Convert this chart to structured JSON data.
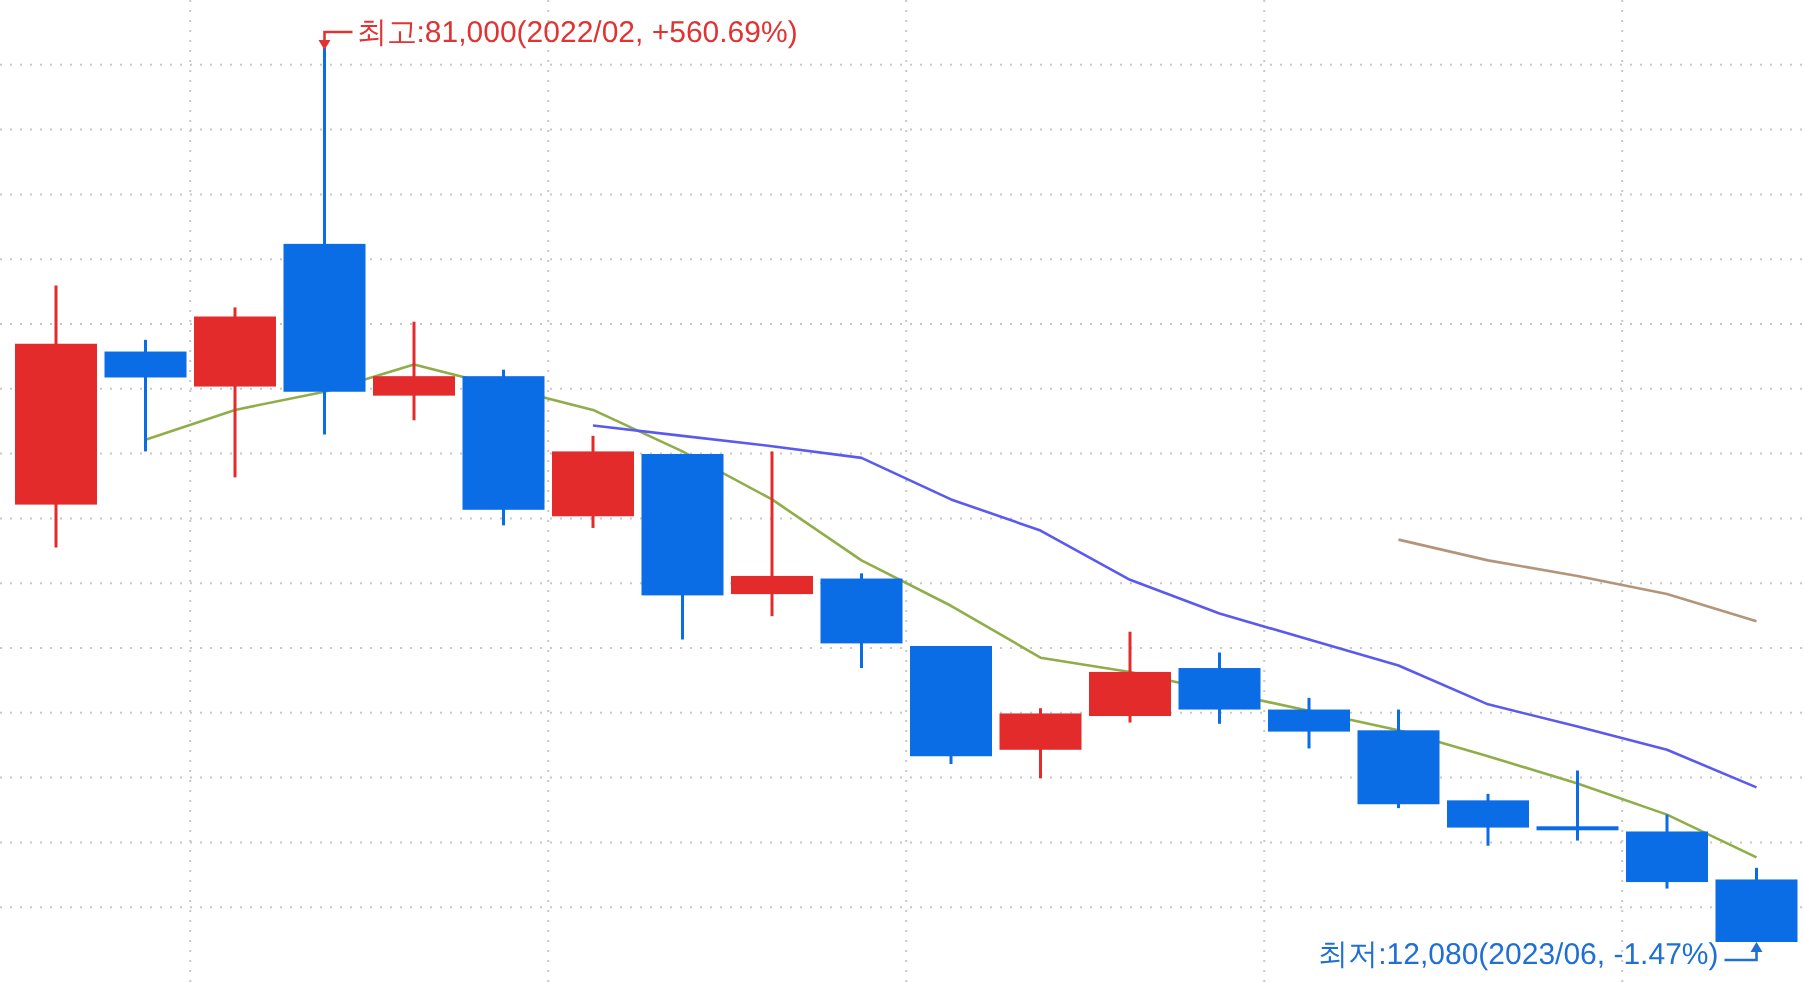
{
  "chart_data": {
    "type": "candlestick",
    "grid": true,
    "categories": [
      null,
      null,
      null,
      null,
      null,
      null,
      null,
      null,
      null,
      null,
      null,
      null,
      null,
      null,
      null,
      null,
      null,
      null,
      null,
      null
    ],
    "ohlc": [
      [
        45800,
        62700,
        42500,
        58200
      ],
      [
        57600,
        58500,
        49900,
        55600
      ],
      [
        54900,
        61000,
        47900,
        60300
      ],
      [
        65900,
        81000,
        51200,
        54500
      ],
      [
        54200,
        59900,
        52300,
        55700
      ],
      [
        55700,
        56200,
        44200,
        45400
      ],
      [
        44900,
        51100,
        44000,
        49900
      ],
      [
        49700,
        49700,
        35400,
        38800
      ],
      [
        38900,
        49900,
        37200,
        40300
      ],
      [
        40100,
        40500,
        33200,
        35100
      ],
      [
        34900,
        34900,
        25800,
        26400
      ],
      [
        26900,
        30100,
        24700,
        29700
      ],
      [
        29500,
        36000,
        29000,
        32900
      ],
      [
        33200,
        34400,
        28900,
        30000
      ],
      [
        30000,
        30900,
        27000,
        28300
      ],
      [
        28400,
        30000,
        22400,
        22700
      ],
      [
        23000,
        23500,
        19500,
        20900
      ],
      [
        21000,
        25300,
        19900,
        20700
      ],
      [
        20600,
        21900,
        16200,
        16700
      ],
      [
        16900,
        17800,
        12080,
        12080
      ]
    ],
    "colors": [
      "#e32b2b",
      "#0b6de6",
      "#e32b2b",
      "#0b6de6",
      "#e32b2b",
      "#0b6de6",
      "#e32b2b",
      "#0b6de6",
      "#e32b2b",
      "#0b6de6",
      "#0b6de6",
      "#e32b2b",
      "#e32b2b",
      "#0b6de6",
      "#0b6de6",
      "#0b6de6",
      "#0b6de6",
      "#0b6de6",
      "#0b6de6",
      "#0b6de6"
    ],
    "series": [
      {
        "type": "line",
        "color": "#8fae4a",
        "values": [
          null,
          50800,
          53100,
          54500,
          56600,
          null,
          53100,
          49900,
          46200,
          41500,
          38000,
          34000,
          32900,
          null,
          null,
          28400,
          26400,
          24300,
          21900,
          18600
        ]
      },
      {
        "type": "line",
        "color": "#5a5af0",
        "values": [
          null,
          null,
          null,
          null,
          null,
          null,
          51900,
          51100,
          50300,
          49400,
          46200,
          43800,
          40000,
          37400,
          35400,
          33400,
          30400,
          28700,
          26900,
          24000
        ]
      },
      {
        "type": "line",
        "color": "#b3957a",
        "values": [
          null,
          null,
          null,
          null,
          null,
          null,
          null,
          null,
          null,
          null,
          null,
          null,
          null,
          null,
          null,
          43100,
          41500,
          40300,
          38900,
          36800
        ]
      }
    ],
    "annotations": [
      "최고:81,000(2022/02, +560.69%)",
      "최저:12,080(2023/06, -1.47%)"
    ]
  }
}
